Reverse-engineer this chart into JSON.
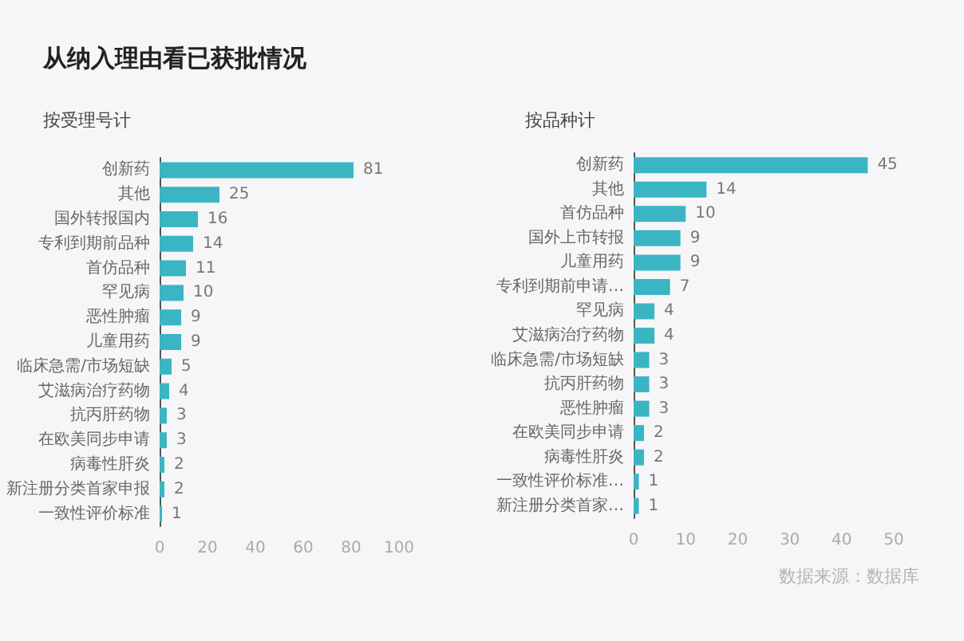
{
  "chart_data": [
    {
      "type": "bar",
      "orientation": "horizontal",
      "title": "从纳入理由看已获批情况",
      "subtitle": "按受理号计",
      "categories": [
        "创新药",
        "其他",
        "国外转报国内",
        "专利到期前品种",
        "首仿品种",
        "罕见病",
        "恶性肿瘤",
        "儿童用药",
        "临床急需/市场短缺",
        "艾滋病治疗药物",
        "抗丙肝药物",
        "在欧美同步申请",
        "病毒性肝炎",
        "新注册分类首家申报",
        "一致性评价标准"
      ],
      "values": [
        81,
        25,
        16,
        14,
        11,
        10,
        9,
        9,
        5,
        4,
        3,
        3,
        2,
        2,
        1
      ],
      "color": "#3bb5c3",
      "xlim": [
        0,
        100
      ],
      "xticks": [
        0,
        20,
        40,
        60,
        80,
        100
      ],
      "data_labels": true
    },
    {
      "type": "bar",
      "orientation": "horizontal",
      "title": "按品种计",
      "categories": [
        "创新药",
        "其他",
        "首仿品种",
        "国外上市转报",
        "儿童用药",
        "专利到期前申请…",
        "罕见病",
        "艾滋病治疗药物",
        "临床急需/市场短缺",
        "抗丙肝药物",
        "恶性肿瘤",
        "在欧美同步申请",
        "病毒性肝炎",
        "一致性评价标准…",
        "新注册分类首家…"
      ],
      "values": [
        45,
        14,
        10,
        9,
        9,
        7,
        4,
        4,
        3,
        3,
        3,
        2,
        2,
        1,
        1
      ],
      "color": "#3bb5c3",
      "xlim": [
        0,
        50
      ],
      "xticks": [
        0,
        10,
        20,
        30,
        40,
        50
      ],
      "data_labels": true,
      "annotations": [
        "数据来源：数据库"
      ]
    }
  ]
}
